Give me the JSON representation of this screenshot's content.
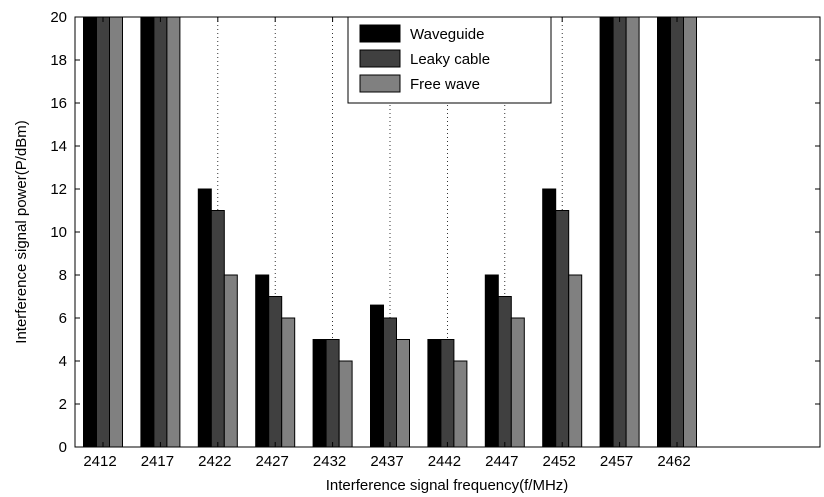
{
  "chart_data": {
    "type": "bar",
    "xlabel": "Interference signal frequency(f/MHz)",
    "ylabel": "Interference signal power(P/dBm)",
    "categories": [
      "2412",
      "2417",
      "2422",
      "2427",
      "2432",
      "2437",
      "2442",
      "2447",
      "2452",
      "2457",
      "2462"
    ],
    "series": [
      {
        "name": "Waveguide",
        "color": "#000000",
        "values": [
          20,
          20,
          12,
          8,
          5,
          6.6,
          5,
          8,
          12,
          20,
          20
        ]
      },
      {
        "name": "Leaky cable",
        "color": "#404040",
        "values": [
          20,
          20,
          11,
          7,
          5,
          6,
          5,
          7,
          11,
          20,
          20
        ]
      },
      {
        "name": "Free wave",
        "color": "#808080",
        "values": [
          20,
          20,
          8,
          6,
          4,
          5,
          4,
          6,
          8,
          20,
          20
        ]
      }
    ],
    "ylim": [
      0,
      20
    ],
    "yticks": [
      0,
      2,
      4,
      6,
      8,
      10,
      12,
      14,
      16,
      18,
      20
    ],
    "grid": "vertical-dotted",
    "legend": "top-center"
  }
}
